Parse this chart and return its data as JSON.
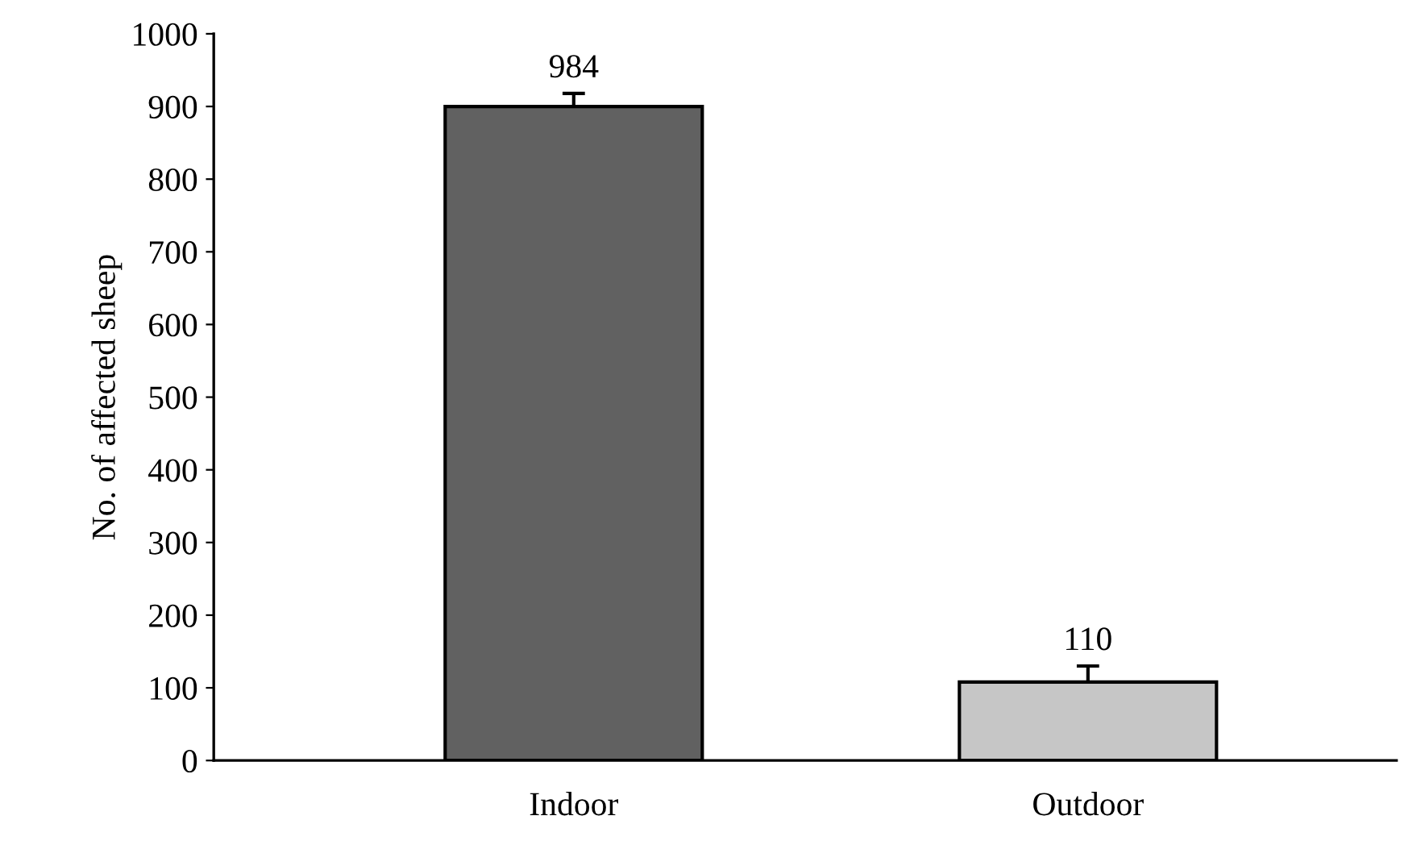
{
  "chart_data": {
    "type": "bar",
    "ylabel": "No. of affected sheep",
    "categories": [
      "Indoor",
      "Outdoor"
    ],
    "values": [
      900,
      108
    ],
    "colors": [
      "#616161",
      "#c6c6c6"
    ],
    "errors": [
      18,
      22
    ],
    "annotations": [
      "984",
      "110"
    ],
    "ylim": [
      0,
      1000
    ],
    "yticks": [
      0,
      100,
      200,
      300,
      400,
      500,
      600,
      700,
      800,
      900,
      1000
    ],
    "grid": false,
    "legend": false
  }
}
